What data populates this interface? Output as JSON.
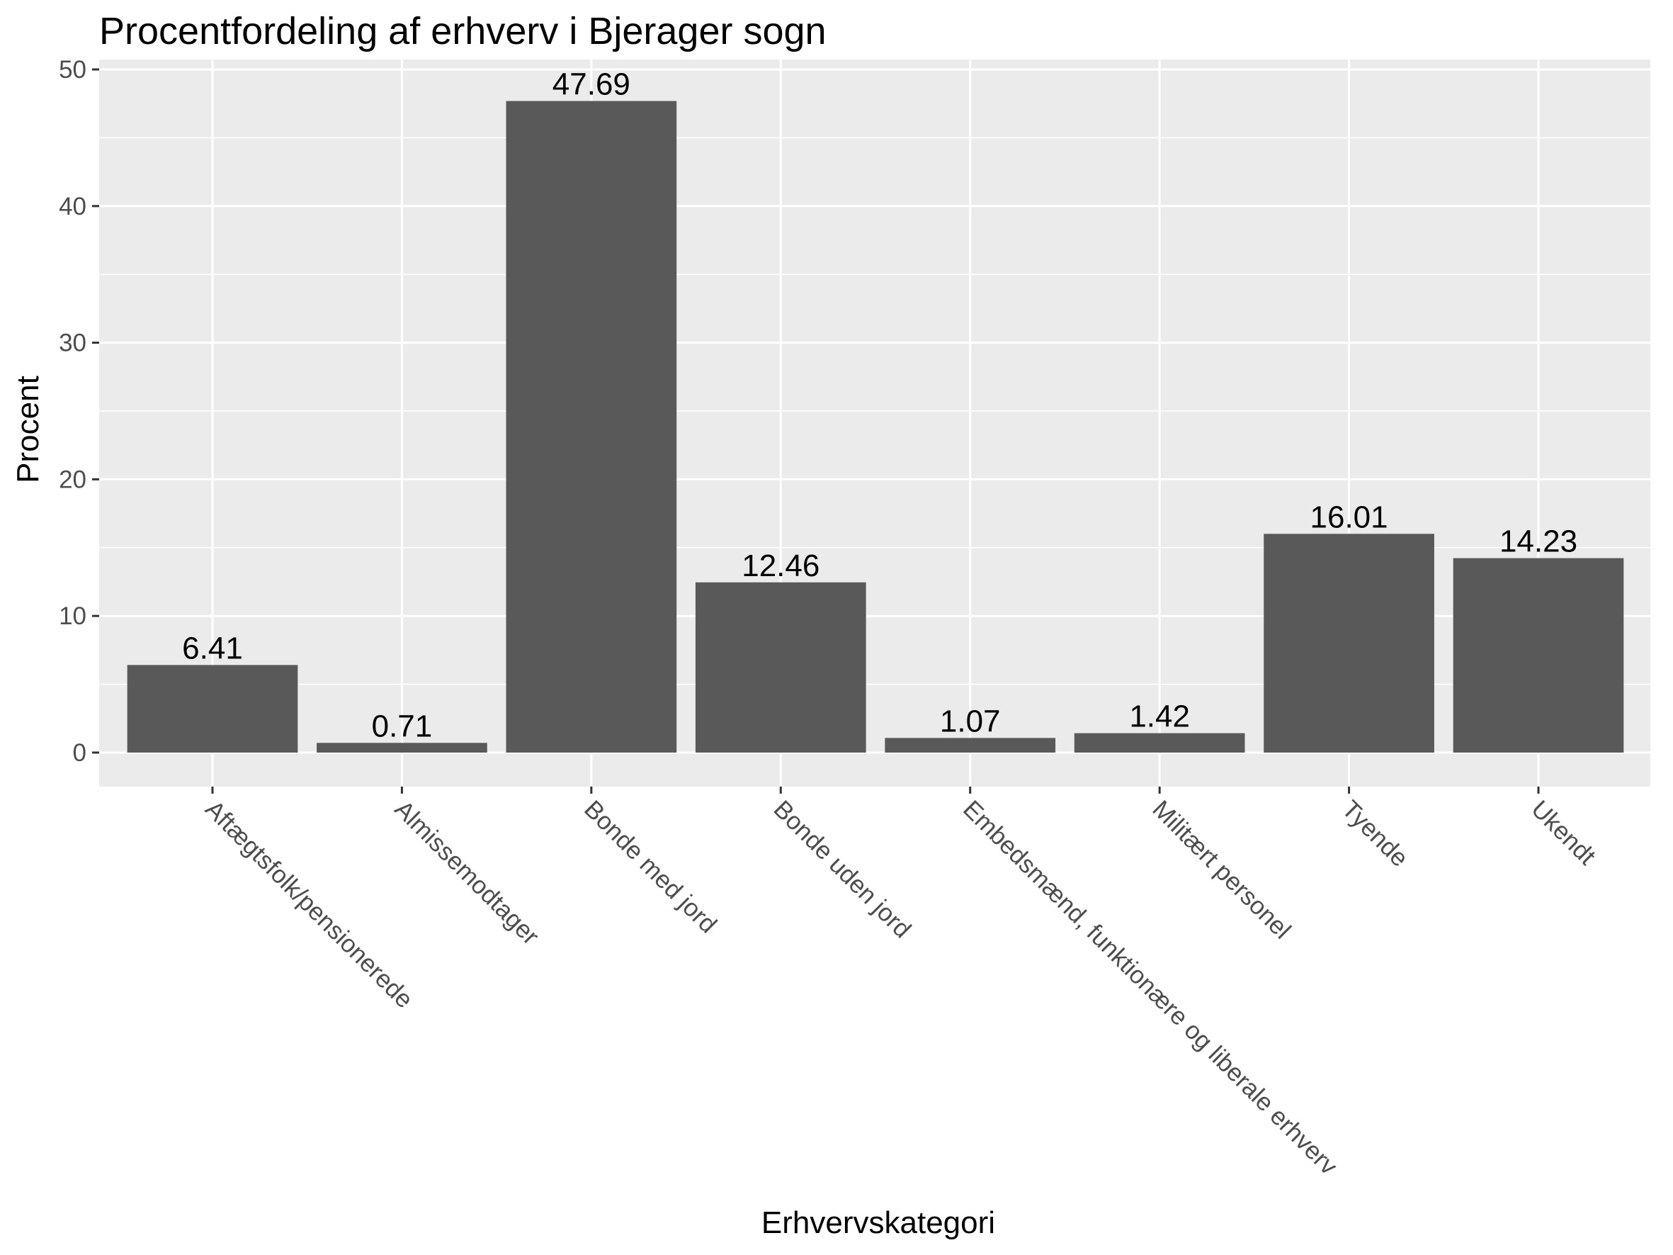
{
  "chart_data": {
    "type": "bar",
    "title": "Procentfordeling af erhverv i Bjerager sogn",
    "xlabel": "Erhvervskategori",
    "ylabel": "Procent",
    "categories": [
      "Aftægtsfolk/pensionerede",
      "Almissemodtager",
      "Bonde med jord",
      "Bonde uden jord",
      "Embedsmænd, funktionære og liberale erhverv",
      "Militært personel",
      "Tyende",
      "Ukendt"
    ],
    "values": [
      6.41,
      0.71,
      47.69,
      12.46,
      1.07,
      1.42,
      16.01,
      14.23
    ],
    "value_labels": [
      "6.41",
      "0.71",
      "47.69",
      "12.46",
      "1.07",
      "1.42",
      "16.01",
      "14.23"
    ],
    "ylim": [
      0,
      50
    ],
    "yticks": [
      0,
      10,
      20,
      30,
      40,
      50
    ],
    "ytick_labels": [
      "0",
      "10",
      "20",
      "30",
      "40",
      "50"
    ],
    "x_tick_rotation": "-45",
    "grid": true,
    "legend": "none",
    "colors": {
      "bar": "#595959",
      "panel": "#ebebeb",
      "grid": "#ffffff",
      "tick_text": "#4d4d4d",
      "text": "#000000"
    }
  }
}
